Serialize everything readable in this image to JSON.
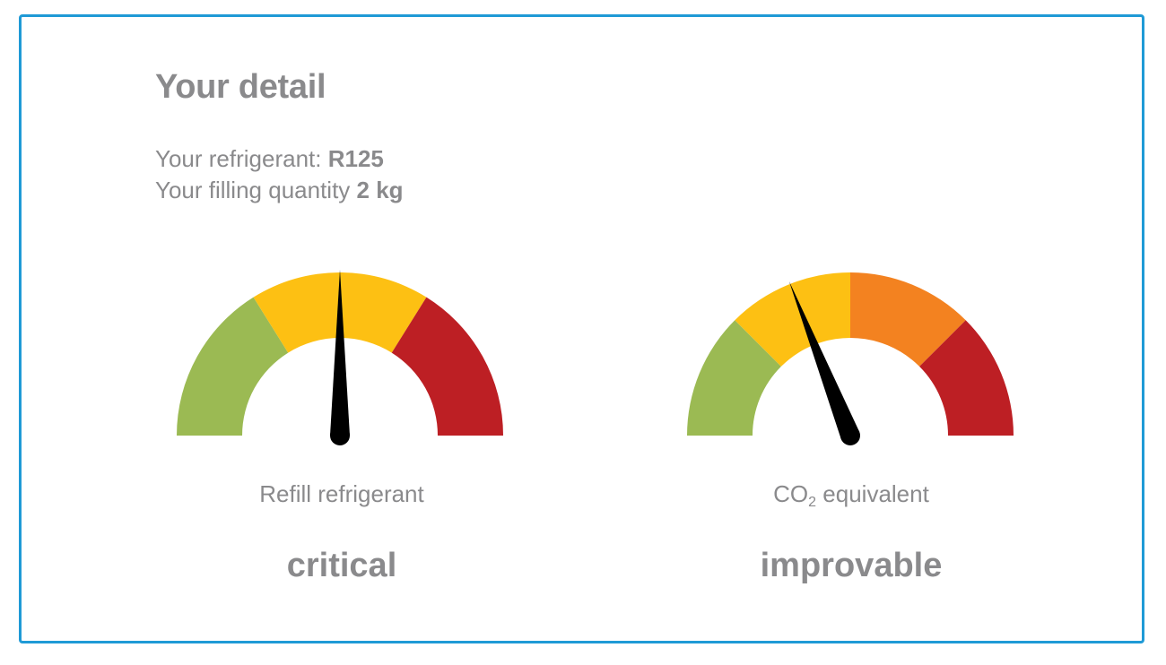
{
  "header": {
    "title": "Your detail"
  },
  "details": {
    "refrigerant_label": "Your refrigerant:",
    "refrigerant_value": "R125",
    "quantity_label": "Your filling quantity",
    "quantity_value": "2 kg"
  },
  "gauges": [
    {
      "label": "Refill refrigerant",
      "status": "critical",
      "level": 0.5,
      "segments": [
        "#9bba53",
        "#fdc013",
        "#bd1f24"
      ]
    },
    {
      "label_prefix": "CO",
      "label_subscript": "2",
      "label_suffix": " equivalent",
      "status": "improvable",
      "level": 0.38,
      "segments": [
        "#9bba53",
        "#fdc013",
        "#f38220",
        "#bd1f24"
      ]
    }
  ],
  "colors": {
    "border": "#1f9ad6",
    "text": "#8a8a8c",
    "needle": "#000000"
  }
}
